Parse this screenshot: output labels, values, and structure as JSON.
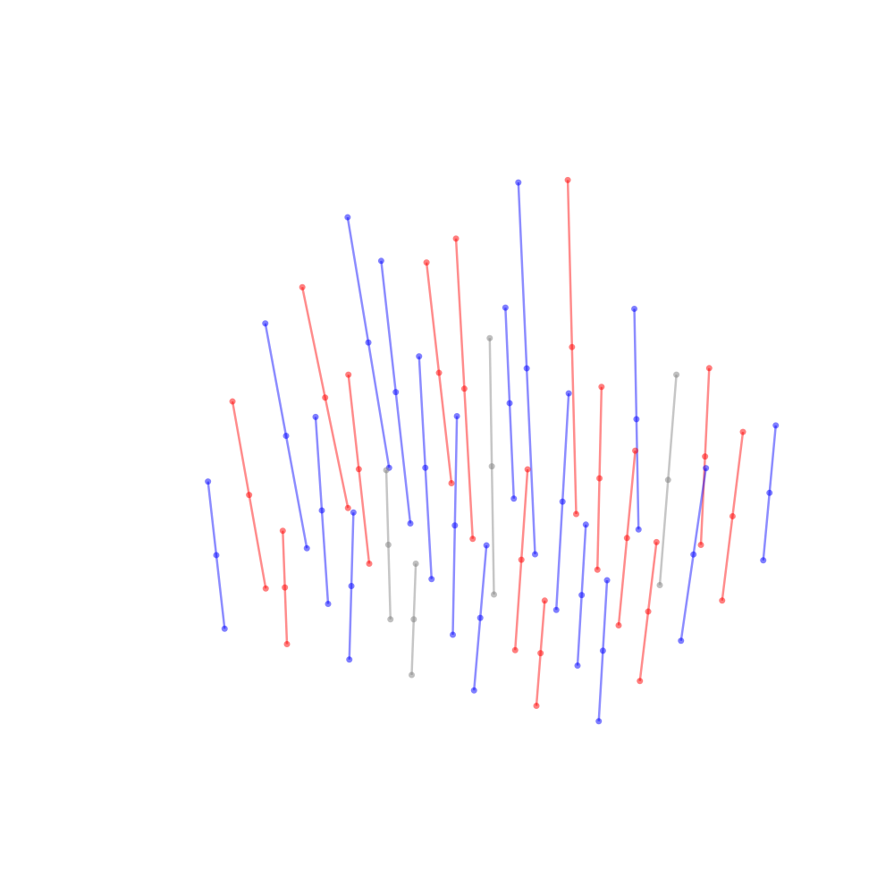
{
  "chart_data": {
    "type": "line3d",
    "xlim": [
      0,
      10
    ],
    "ylim": [
      0,
      10
    ],
    "zlim": [
      0,
      10
    ],
    "series": [
      {
        "color": "#0000ff",
        "points": [
          [
            0.5,
            9,
            0
          ],
          [
            0.1,
            8.8,
            3.5
          ],
          [
            -0.3,
            8.6,
            7
          ]
        ]
      },
      {
        "color": "#ff0000",
        "points": [
          [
            2,
            9,
            0
          ],
          [
            1.7,
            9,
            3
          ],
          [
            1.4,
            9,
            6
          ]
        ]
      },
      {
        "color": "#0000ff",
        "points": [
          [
            3.5,
            9,
            0
          ],
          [
            3.3,
            9.2,
            2.5
          ],
          [
            3.1,
            9.4,
            5
          ]
        ]
      },
      {
        "color": "#ff0000",
        "points": [
          [
            5,
            9,
            0
          ],
          [
            4.8,
            9.2,
            4.5
          ],
          [
            4.6,
            9.4,
            9
          ]
        ]
      },
      {
        "color": "#0000ff",
        "points": [
          [
            6.5,
            9,
            0
          ],
          [
            6.4,
            9.1,
            3
          ],
          [
            6.3,
            9.2,
            6
          ]
        ]
      },
      {
        "color": "#ff0000",
        "points": [
          [
            8,
            9,
            0
          ],
          [
            8.1,
            9,
            2.5
          ],
          [
            8.2,
            9,
            5
          ]
        ]
      },
      {
        "color": "#0000ff",
        "points": [
          [
            9.5,
            9,
            0
          ],
          [
            9.7,
            8.9,
            2
          ],
          [
            9.9,
            8.8,
            4
          ]
        ]
      },
      {
        "color": "#ff0000",
        "points": [
          [
            0.5,
            7,
            0
          ],
          [
            0,
            6.9,
            3
          ],
          [
            -0.5,
            6.8,
            6
          ]
        ]
      },
      {
        "color": "#0000ff",
        "points": [
          [
            2,
            7,
            0
          ],
          [
            1.6,
            7.1,
            3.5
          ],
          [
            1.2,
            7.2,
            7
          ]
        ]
      },
      {
        "color": "#ff0000",
        "points": [
          [
            3.5,
            7,
            0
          ],
          [
            3.2,
            7.2,
            4
          ],
          [
            2.9,
            7.4,
            8
          ]
        ]
      },
      {
        "color": "#0000ff",
        "points": [
          [
            5,
            7,
            0
          ],
          [
            4.7,
            7.2,
            5
          ],
          [
            4.4,
            7.4,
            10
          ]
        ]
      },
      {
        "color": "#ff0000",
        "points": [
          [
            6.5,
            7,
            0
          ],
          [
            6.5,
            7.1,
            2.5
          ],
          [
            6.5,
            7.2,
            5
          ]
        ]
      },
      {
        "color": "#808080",
        "points": [
          [
            8,
            7,
            0
          ],
          [
            8.2,
            7,
            3
          ],
          [
            8.4,
            7,
            6
          ]
        ]
      },
      {
        "color": "#ff0000",
        "points": [
          [
            9.5,
            7,
            0
          ],
          [
            9.8,
            6.9,
            2.5
          ],
          [
            10.1,
            6.8,
            5
          ]
        ]
      },
      {
        "color": "#0000ff",
        "points": [
          [
            0.5,
            5,
            0
          ],
          [
            0,
            5,
            3
          ],
          [
            -0.5,
            5,
            6
          ]
        ]
      },
      {
        "color": "#ff0000",
        "points": [
          [
            2,
            5,
            0
          ],
          [
            1.7,
            5.1,
            2.5
          ],
          [
            1.4,
            5.2,
            5
          ]
        ]
      },
      {
        "color": "#0000ff",
        "points": [
          [
            3.5,
            5,
            0
          ],
          [
            3.3,
            5.1,
            3
          ],
          [
            3.1,
            5.2,
            6
          ]
        ]
      },
      {
        "color": "#808080",
        "points": [
          [
            5,
            5,
            0
          ],
          [
            4.9,
            5.1,
            3.5
          ],
          [
            4.8,
            5.2,
            7
          ]
        ]
      },
      {
        "color": "#0000ff",
        "points": [
          [
            6.5,
            5,
            0
          ],
          [
            6.6,
            5.1,
            3
          ],
          [
            6.7,
            5.2,
            6
          ]
        ]
      },
      {
        "color": "#ff0000",
        "points": [
          [
            8,
            5,
            0
          ],
          [
            8.2,
            5,
            2.5
          ],
          [
            8.4,
            5,
            5
          ]
        ]
      },
      {
        "color": "#0000ff",
        "points": [
          [
            9.5,
            5,
            0
          ],
          [
            9.8,
            5,
            2.5
          ],
          [
            10.1,
            5,
            5
          ]
        ]
      },
      {
        "color": "#ff0000",
        "points": [
          [
            0.5,
            3,
            0
          ],
          [
            0.1,
            3,
            2.5
          ],
          [
            -0.3,
            3,
            5
          ]
        ]
      },
      {
        "color": "#0000ff",
        "points": [
          [
            2,
            3,
            0
          ],
          [
            1.8,
            3.1,
            2.5
          ],
          [
            1.6,
            3.2,
            5
          ]
        ]
      },
      {
        "color": "#808080",
        "points": [
          [
            3.5,
            3,
            0
          ],
          [
            3.4,
            3.1,
            2
          ],
          [
            3.3,
            3.2,
            4
          ]
        ]
      },
      {
        "color": "#0000ff",
        "points": [
          [
            5,
            3,
            0
          ],
          [
            5,
            3.1,
            3
          ],
          [
            5,
            3.2,
            6
          ]
        ]
      },
      {
        "color": "#ff0000",
        "points": [
          [
            6.5,
            3,
            0
          ],
          [
            6.6,
            3.1,
            2.5
          ],
          [
            6.7,
            3.2,
            5
          ]
        ]
      },
      {
        "color": "#0000ff",
        "points": [
          [
            8,
            3,
            0
          ],
          [
            8.1,
            3,
            2
          ],
          [
            8.2,
            3,
            4
          ]
        ]
      },
      {
        "color": "#ff0000",
        "points": [
          [
            9.5,
            3,
            0
          ],
          [
            9.7,
            3,
            2
          ],
          [
            9.9,
            3,
            4
          ]
        ]
      },
      {
        "color": "#0000ff",
        "points": [
          [
            0.5,
            1,
            0
          ],
          [
            0.3,
            1,
            2
          ],
          [
            0.1,
            1,
            4
          ]
        ]
      },
      {
        "color": "#ff0000",
        "points": [
          [
            2,
            1,
            0
          ],
          [
            1.9,
            1.1,
            1.5
          ],
          [
            1.8,
            1.2,
            3
          ]
        ]
      },
      {
        "color": "#0000ff",
        "points": [
          [
            3.5,
            1,
            0
          ],
          [
            3.5,
            1.1,
            2
          ],
          [
            3.5,
            1.2,
            4
          ]
        ]
      },
      {
        "color": "#808080",
        "points": [
          [
            5,
            1,
            0
          ],
          [
            5,
            1.1,
            1.5
          ],
          [
            5,
            1.2,
            3
          ]
        ]
      },
      {
        "color": "#0000ff",
        "points": [
          [
            6.5,
            1,
            0
          ],
          [
            6.6,
            1.1,
            2
          ],
          [
            6.7,
            1.2,
            4
          ]
        ]
      },
      {
        "color": "#ff0000",
        "points": [
          [
            8,
            1,
            0
          ],
          [
            8.1,
            1,
            1.5
          ],
          [
            8.2,
            1,
            3
          ]
        ]
      },
      {
        "color": "#0000ff",
        "points": [
          [
            9.5,
            1,
            0
          ],
          [
            9.6,
            1,
            2
          ],
          [
            9.7,
            1,
            4
          ]
        ]
      }
    ]
  }
}
